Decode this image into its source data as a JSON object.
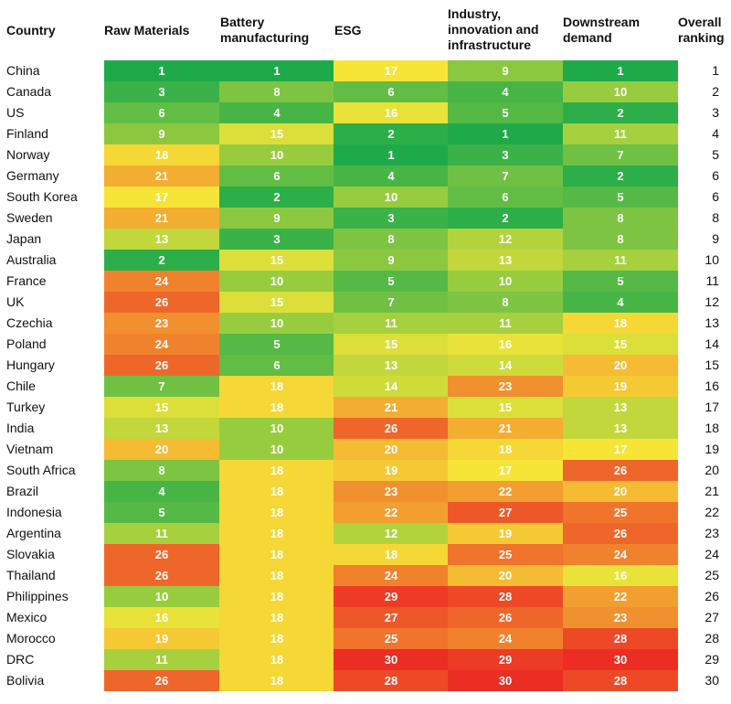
{
  "chart_data": {
    "type": "heatmap",
    "headers": {
      "country": "Country",
      "columns": [
        "Raw Materials",
        "Battery manufacturing",
        "ESG",
        "Industry, innovation and infrastructure",
        "Downstream demand"
      ],
      "overall": "Overall ranking"
    },
    "colors": {
      "low": "#1faa4a",
      "mid": "#f6e637",
      "high": "#ec2d24"
    },
    "value_range": [
      1,
      30
    ],
    "rows": [
      {
        "country": "China",
        "values": [
          1,
          1,
          17,
          9,
          1
        ],
        "overall": 1
      },
      {
        "country": "Canada",
        "values": [
          3,
          8,
          6,
          4,
          10
        ],
        "overall": 2
      },
      {
        "country": "US",
        "values": [
          6,
          4,
          16,
          5,
          2
        ],
        "overall": 3
      },
      {
        "country": "Finland",
        "values": [
          9,
          15,
          2,
          1,
          11
        ],
        "overall": 4
      },
      {
        "country": "Norway",
        "values": [
          18,
          10,
          1,
          3,
          7
        ],
        "overall": 5
      },
      {
        "country": "Germany",
        "values": [
          21,
          6,
          4,
          7,
          2
        ],
        "overall": 6
      },
      {
        "country": "South Korea",
        "values": [
          17,
          2,
          10,
          6,
          5
        ],
        "overall": 6
      },
      {
        "country": "Sweden",
        "values": [
          21,
          9,
          3,
          2,
          8
        ],
        "overall": 8
      },
      {
        "country": "Japan",
        "values": [
          13,
          3,
          8,
          12,
          8
        ],
        "overall": 9
      },
      {
        "country": "Australia",
        "values": [
          2,
          15,
          9,
          13,
          11
        ],
        "overall": 10
      },
      {
        "country": "France",
        "values": [
          24,
          10,
          5,
          10,
          5
        ],
        "overall": 11
      },
      {
        "country": "UK",
        "values": [
          26,
          15,
          7,
          8,
          4
        ],
        "overall": 12
      },
      {
        "country": "Czechia",
        "values": [
          23,
          10,
          11,
          11,
          18
        ],
        "overall": 13
      },
      {
        "country": "Poland",
        "values": [
          24,
          5,
          15,
          16,
          15
        ],
        "overall": 14
      },
      {
        "country": "Hungary",
        "values": [
          26,
          6,
          13,
          14,
          20
        ],
        "overall": 15
      },
      {
        "country": "Chile",
        "values": [
          7,
          18,
          14,
          23,
          19
        ],
        "overall": 16
      },
      {
        "country": "Turkey",
        "values": [
          15,
          18,
          21,
          15,
          13
        ],
        "overall": 17
      },
      {
        "country": "India",
        "values": [
          13,
          10,
          26,
          21,
          13
        ],
        "overall": 18
      },
      {
        "country": "Vietnam",
        "values": [
          20,
          10,
          20,
          18,
          17
        ],
        "overall": 19
      },
      {
        "country": "South Africa",
        "values": [
          8,
          18,
          19,
          17,
          26
        ],
        "overall": 20
      },
      {
        "country": "Brazil",
        "values": [
          4,
          18,
          23,
          22,
          20
        ],
        "overall": 21
      },
      {
        "country": "Indonesia",
        "values": [
          5,
          18,
          22,
          27,
          25
        ],
        "overall": 22
      },
      {
        "country": "Argentina",
        "values": [
          11,
          18,
          12,
          19,
          26
        ],
        "overall": 23
      },
      {
        "country": "Slovakia",
        "values": [
          26,
          18,
          18,
          25,
          24
        ],
        "overall": 24
      },
      {
        "country": "Thailand",
        "values": [
          26,
          18,
          24,
          20,
          16
        ],
        "overall": 25
      },
      {
        "country": "Philippines",
        "values": [
          10,
          18,
          29,
          28,
          22
        ],
        "overall": 26
      },
      {
        "country": "Mexico",
        "values": [
          16,
          18,
          27,
          26,
          23
        ],
        "overall": 27
      },
      {
        "country": "Morocco",
        "values": [
          19,
          18,
          25,
          24,
          28
        ],
        "overall": 28
      },
      {
        "country": "DRC",
        "values": [
          11,
          18,
          30,
          29,
          30
        ],
        "overall": 29
      },
      {
        "country": "Bolivia",
        "values": [
          26,
          18,
          28,
          30,
          28
        ],
        "overall": 30
      }
    ]
  }
}
